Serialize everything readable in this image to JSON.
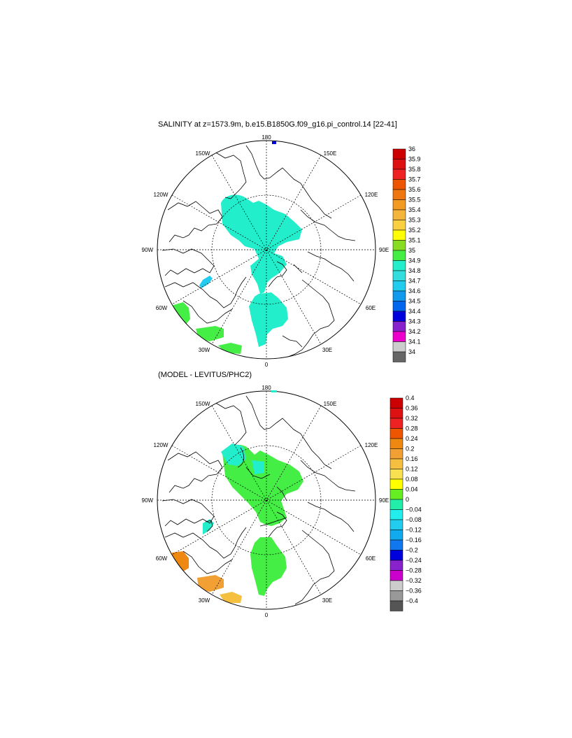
{
  "panels": [
    {
      "title": "SALINITY at z=1573.9m, b.e15.B1850G.f09_g16.pi_control.14 [22-41]",
      "meridian_labels": {
        "top": "180",
        "bottom": "0",
        "left": "90W",
        "right": "90E",
        "ul1": "150W",
        "ul2": "120W",
        "ur1": "150E",
        "ur2": "120E",
        "ll1": "60W",
        "ll2": "30W",
        "lr1": "60E",
        "lr2": "30E"
      },
      "colorbar": {
        "labels": [
          "36",
          "35.9",
          "35.8",
          "35.7",
          "35.6",
          "35.5",
          "35.4",
          "35.3",
          "35.2",
          "35.1",
          "35",
          "34.9",
          "34.8",
          "34.7",
          "34.6",
          "34.5",
          "34.4",
          "34.3",
          "34.2",
          "34.1",
          "34"
        ],
        "colors": [
          "#cc0000",
          "#dd1111",
          "#ee2222",
          "#ee5500",
          "#ee7711",
          "#f29a22",
          "#f5b53a",
          "#f8d040",
          "#ffff00",
          "#88dd22",
          "#44ee44",
          "#22eecc",
          "#33dddd",
          "#22ccee",
          "#1199ee",
          "#0066ee",
          "#0000dd",
          "#8822cc",
          "#ee00cc",
          "#cccccc",
          "#666666"
        ]
      },
      "regions": [
        {
          "name": "central-arctic",
          "color": "#22eecc"
        },
        {
          "name": "baffin",
          "color": "#22ccee"
        },
        {
          "name": "labrador",
          "color": "#44ee44"
        },
        {
          "name": "atlantic-south",
          "color": "#44ee44"
        },
        {
          "name": "iceland",
          "color": "#44ee44"
        }
      ]
    },
    {
      "title": "(MODEL - LEVITUS/PHC2)",
      "meridian_labels": {
        "top": "180",
        "bottom": "0",
        "left": "90W",
        "right": "90E",
        "ul1": "150W",
        "ul2": "120W",
        "ur1": "150E",
        "ur2": "120E",
        "ll1": "60W",
        "ll2": "30W",
        "lr1": "60E",
        "lr2": "30E"
      },
      "colorbar": {
        "labels": [
          "0.4",
          "0.36",
          "0.32",
          "0.28",
          "0.24",
          "0.2",
          "0.16",
          "0.12",
          "0.08",
          "0.04",
          "0",
          "−0.04",
          "−0.08",
          "−0.12",
          "−0.16",
          "−0.2",
          "−0.24",
          "−0.28",
          "−0.32",
          "−0.36",
          "−0.4"
        ],
        "colors": [
          "#cc0000",
          "#dd1111",
          "#ee2222",
          "#ee5500",
          "#ee8811",
          "#f2a033",
          "#f5c040",
          "#f8e050",
          "#ffff00",
          "#66ee22",
          "#22eeaa",
          "#22eeee",
          "#22ccee",
          "#11aaee",
          "#1177ee",
          "#0000dd",
          "#8822cc",
          "#cc00cc",
          "#cccccc",
          "#999999",
          "#555555"
        ]
      },
      "regions": [
        {
          "name": "central-arctic",
          "color": "#44ee44"
        },
        {
          "name": "arctic-cyan",
          "color": "#22eecc"
        },
        {
          "name": "baffin",
          "color": "#22eecc"
        },
        {
          "name": "labrador",
          "color": "#ee8811"
        },
        {
          "name": "atlantic-south",
          "color": "#f2a033"
        },
        {
          "name": "iceland",
          "color": "#f5c040"
        }
      ]
    }
  ]
}
